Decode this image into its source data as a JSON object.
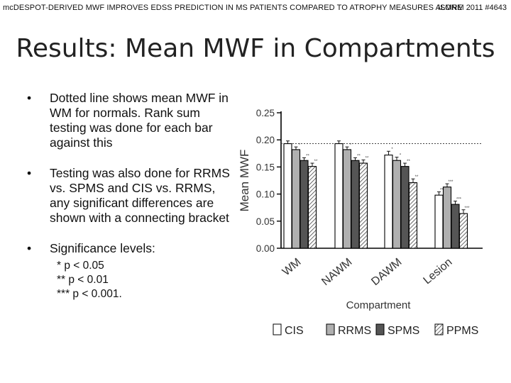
{
  "header": {
    "left": "mcDESPOT-DERIVED MWF IMPROVES EDSS PREDICTION IN MS PATIENTS COMPARED TO ATROPHY MEASURES ALONE",
    "right": "ISMRM 2011 #4643"
  },
  "title": "Results: Mean MWF in Compartments",
  "bullets": [
    "Dotted line shows mean MWF in WM for normals. Rank sum testing was done for each bar against this",
    "Testing was also done for RRMS vs. SPMS and CIS vs. RRMS, any significant differences are shown with a connecting bracket",
    "Significance levels:"
  ],
  "significance": [
    "* p < 0.05",
    "** p < 0.01",
    "*** p < 0.001."
  ],
  "chart_data": {
    "type": "bar",
    "xlabel": "Compartment",
    "ylabel": "Mean MWF",
    "ylim": [
      0,
      0.25
    ],
    "yticks": [
      "0.00",
      "0.05",
      "0.10",
      "0.15",
      "0.20",
      "0.25"
    ],
    "reference_line": 0.193,
    "categories": [
      "WM",
      "NAWM",
      "DAWM",
      "Lesion"
    ],
    "series": [
      {
        "name": "CIS",
        "values": [
          0.193,
          0.193,
          0.172,
          0.098
        ],
        "errors": [
          0.005,
          0.005,
          0.007,
          0.006
        ],
        "sig": [
          "",
          "",
          "*",
          "***"
        ]
      },
      {
        "name": "RRMS",
        "values": [
          0.182,
          0.182,
          0.162,
          0.113
        ],
        "errors": [
          0.005,
          0.005,
          0.006,
          0.006
        ],
        "sig": [
          "*",
          "*",
          "*",
          "***"
        ]
      },
      {
        "name": "SPMS",
        "values": [
          0.162,
          0.162,
          0.151,
          0.081
        ],
        "errors": [
          0.005,
          0.005,
          0.006,
          0.006
        ],
        "sig": [
          "**",
          "**",
          "**",
          "***"
        ]
      },
      {
        "name": "PPMS",
        "values": [
          0.151,
          0.157,
          0.121,
          0.064
        ],
        "errors": [
          0.006,
          0.006,
          0.007,
          0.007
        ],
        "sig": [
          "**",
          "**",
          "**",
          "***"
        ]
      }
    ],
    "legend_position": "bottom",
    "colors": {
      "CIS": "#ffffff",
      "RRMS": "#b0b0b0",
      "SPMS": "#555555",
      "PPMS": "hatched"
    }
  }
}
